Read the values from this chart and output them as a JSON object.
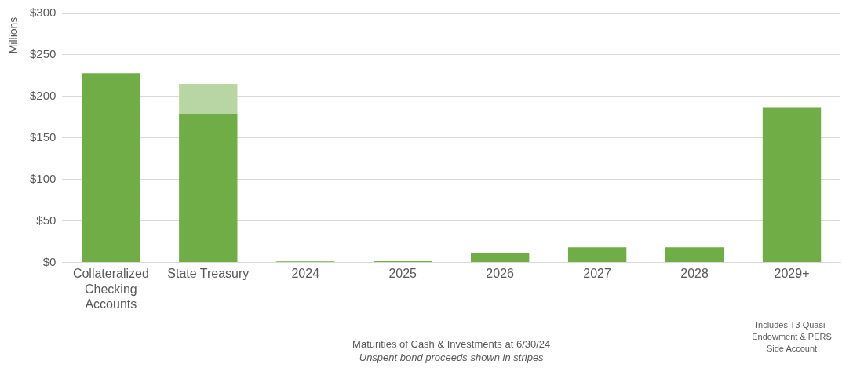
{
  "chart_data": {
    "type": "bar",
    "stacked": true,
    "categories": [
      "Collateralized Checking Accounts",
      "State Treasury",
      "2024",
      "2025",
      "2026",
      "2027",
      "2028",
      "2029+"
    ],
    "series": [
      {
        "color": "#70ad47",
        "values": [
          228,
          179,
          1,
          2,
          11,
          18,
          18,
          186
        ]
      },
      {
        "color": "#b8d6a3",
        "values": [
          null,
          36,
          null,
          null,
          null,
          null,
          null,
          null
        ]
      }
    ],
    "ylabel": "Millions",
    "xlabel": "Maturities of Cash & Investments at 6/30/24",
    "ylim": [
      0,
      300
    ],
    "yticks": [
      {
        "value": 0,
        "label": "$0"
      },
      {
        "value": 50,
        "label": "$50"
      },
      {
        "value": 100,
        "label": "$100"
      },
      {
        "value": 150,
        "label": "$150"
      },
      {
        "value": 200,
        "label": "$200"
      },
      {
        "value": 250,
        "label": "$250"
      },
      {
        "value": 300,
        "label": "$300"
      }
    ],
    "grid": "y",
    "legend": false,
    "annotations": [
      "Includes T3 Quasi-Endowment & PERS Side Account",
      "Unspent bond proceeds shown in stripes"
    ]
  }
}
